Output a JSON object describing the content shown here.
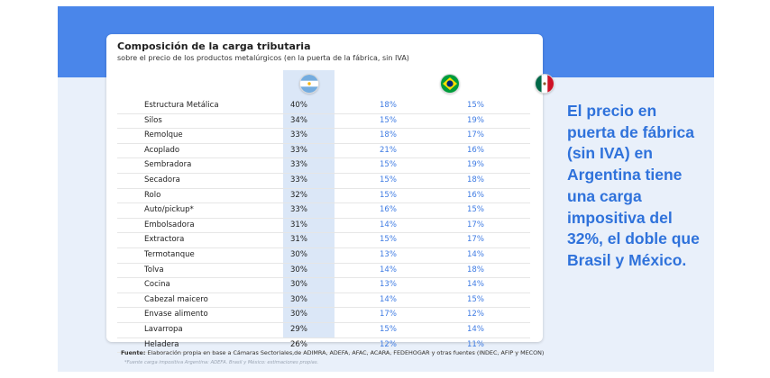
{
  "card": {
    "title": "Composición de la carga tributaria",
    "subtitle": "sobre el precio de los  productos metalúrgicos (en la puerta de la fábrica, sin IVA)"
  },
  "countries": [
    {
      "name": "Argentina",
      "icon": "argentina-flag-icon"
    },
    {
      "name": "Brasil",
      "icon": "brazil-flag-icon"
    },
    {
      "name": "México",
      "icon": "mexico-flag-icon"
    }
  ],
  "colors": {
    "accent": "#4a86ea",
    "value_blue": "#3e7be3",
    "highlight": "#dbe7f7",
    "callout": "#2f72db"
  },
  "table": {
    "rows": [
      {
        "product": "Estructura Metálica",
        "ar": "40%",
        "br": "18%",
        "mx": "15%"
      },
      {
        "product": "Silos",
        "ar": "34%",
        "br": "15%",
        "mx": "19%"
      },
      {
        "product": "Remolque",
        "ar": "33%",
        "br": "18%",
        "mx": "17%"
      },
      {
        "product": "Acoplado",
        "ar": "33%",
        "br": "21%",
        "mx": "16%"
      },
      {
        "product": "Sembradora",
        "ar": "33%",
        "br": "15%",
        "mx": "19%"
      },
      {
        "product": "Secadora",
        "ar": "33%",
        "br": "15%",
        "mx": "18%"
      },
      {
        "product": "Rolo",
        "ar": "32%",
        "br": "15%",
        "mx": "16%"
      },
      {
        "product": "Auto/pickup*",
        "ar": "33%",
        "br": "16%",
        "mx": "15%"
      },
      {
        "product": "Embolsadora",
        "ar": "31%",
        "br": "14%",
        "mx": "17%"
      },
      {
        "product": "Extractora",
        "ar": "31%",
        "br": "15%",
        "mx": "17%"
      },
      {
        "product": "Termotanque",
        "ar": "30%",
        "br": "13%",
        "mx": "14%"
      },
      {
        "product": "Tolva",
        "ar": "30%",
        "br": "14%",
        "mx": "18%"
      },
      {
        "product": "Cocina",
        "ar": "30%",
        "br": "13%",
        "mx": "14%"
      },
      {
        "product": "Cabezal maicero",
        "ar": "30%",
        "br": "14%",
        "mx": "15%"
      },
      {
        "product": "Envase alimento",
        "ar": "30%",
        "br": "17%",
        "mx": "12%"
      },
      {
        "product": "Lavarropa",
        "ar": "29%",
        "br": "15%",
        "mx": "14%"
      },
      {
        "product": "Heladera",
        "ar": "26%",
        "br": "12%",
        "mx": "11%"
      }
    ]
  },
  "footnote": {
    "label": "Fuente:",
    "text": " Elaboración propia en base a Cámaras Sectoriales,de ADIMRA, ADEFA, AFAC, ACARA, FEDEHOGAR y otras fuentes (INDEC, AFIP y MECON)",
    "note": "*Fuente carga impositiva Argentina: ADEFA. Brasil y México: estimaciones propias."
  },
  "callout": {
    "lines": [
      "El precio en",
      "puerta de fábrica",
      "(sin IVA) en",
      "Argentina tiene",
      "una carga",
      "impositiva del",
      "32%, el doble que",
      "Brasil y México."
    ]
  }
}
